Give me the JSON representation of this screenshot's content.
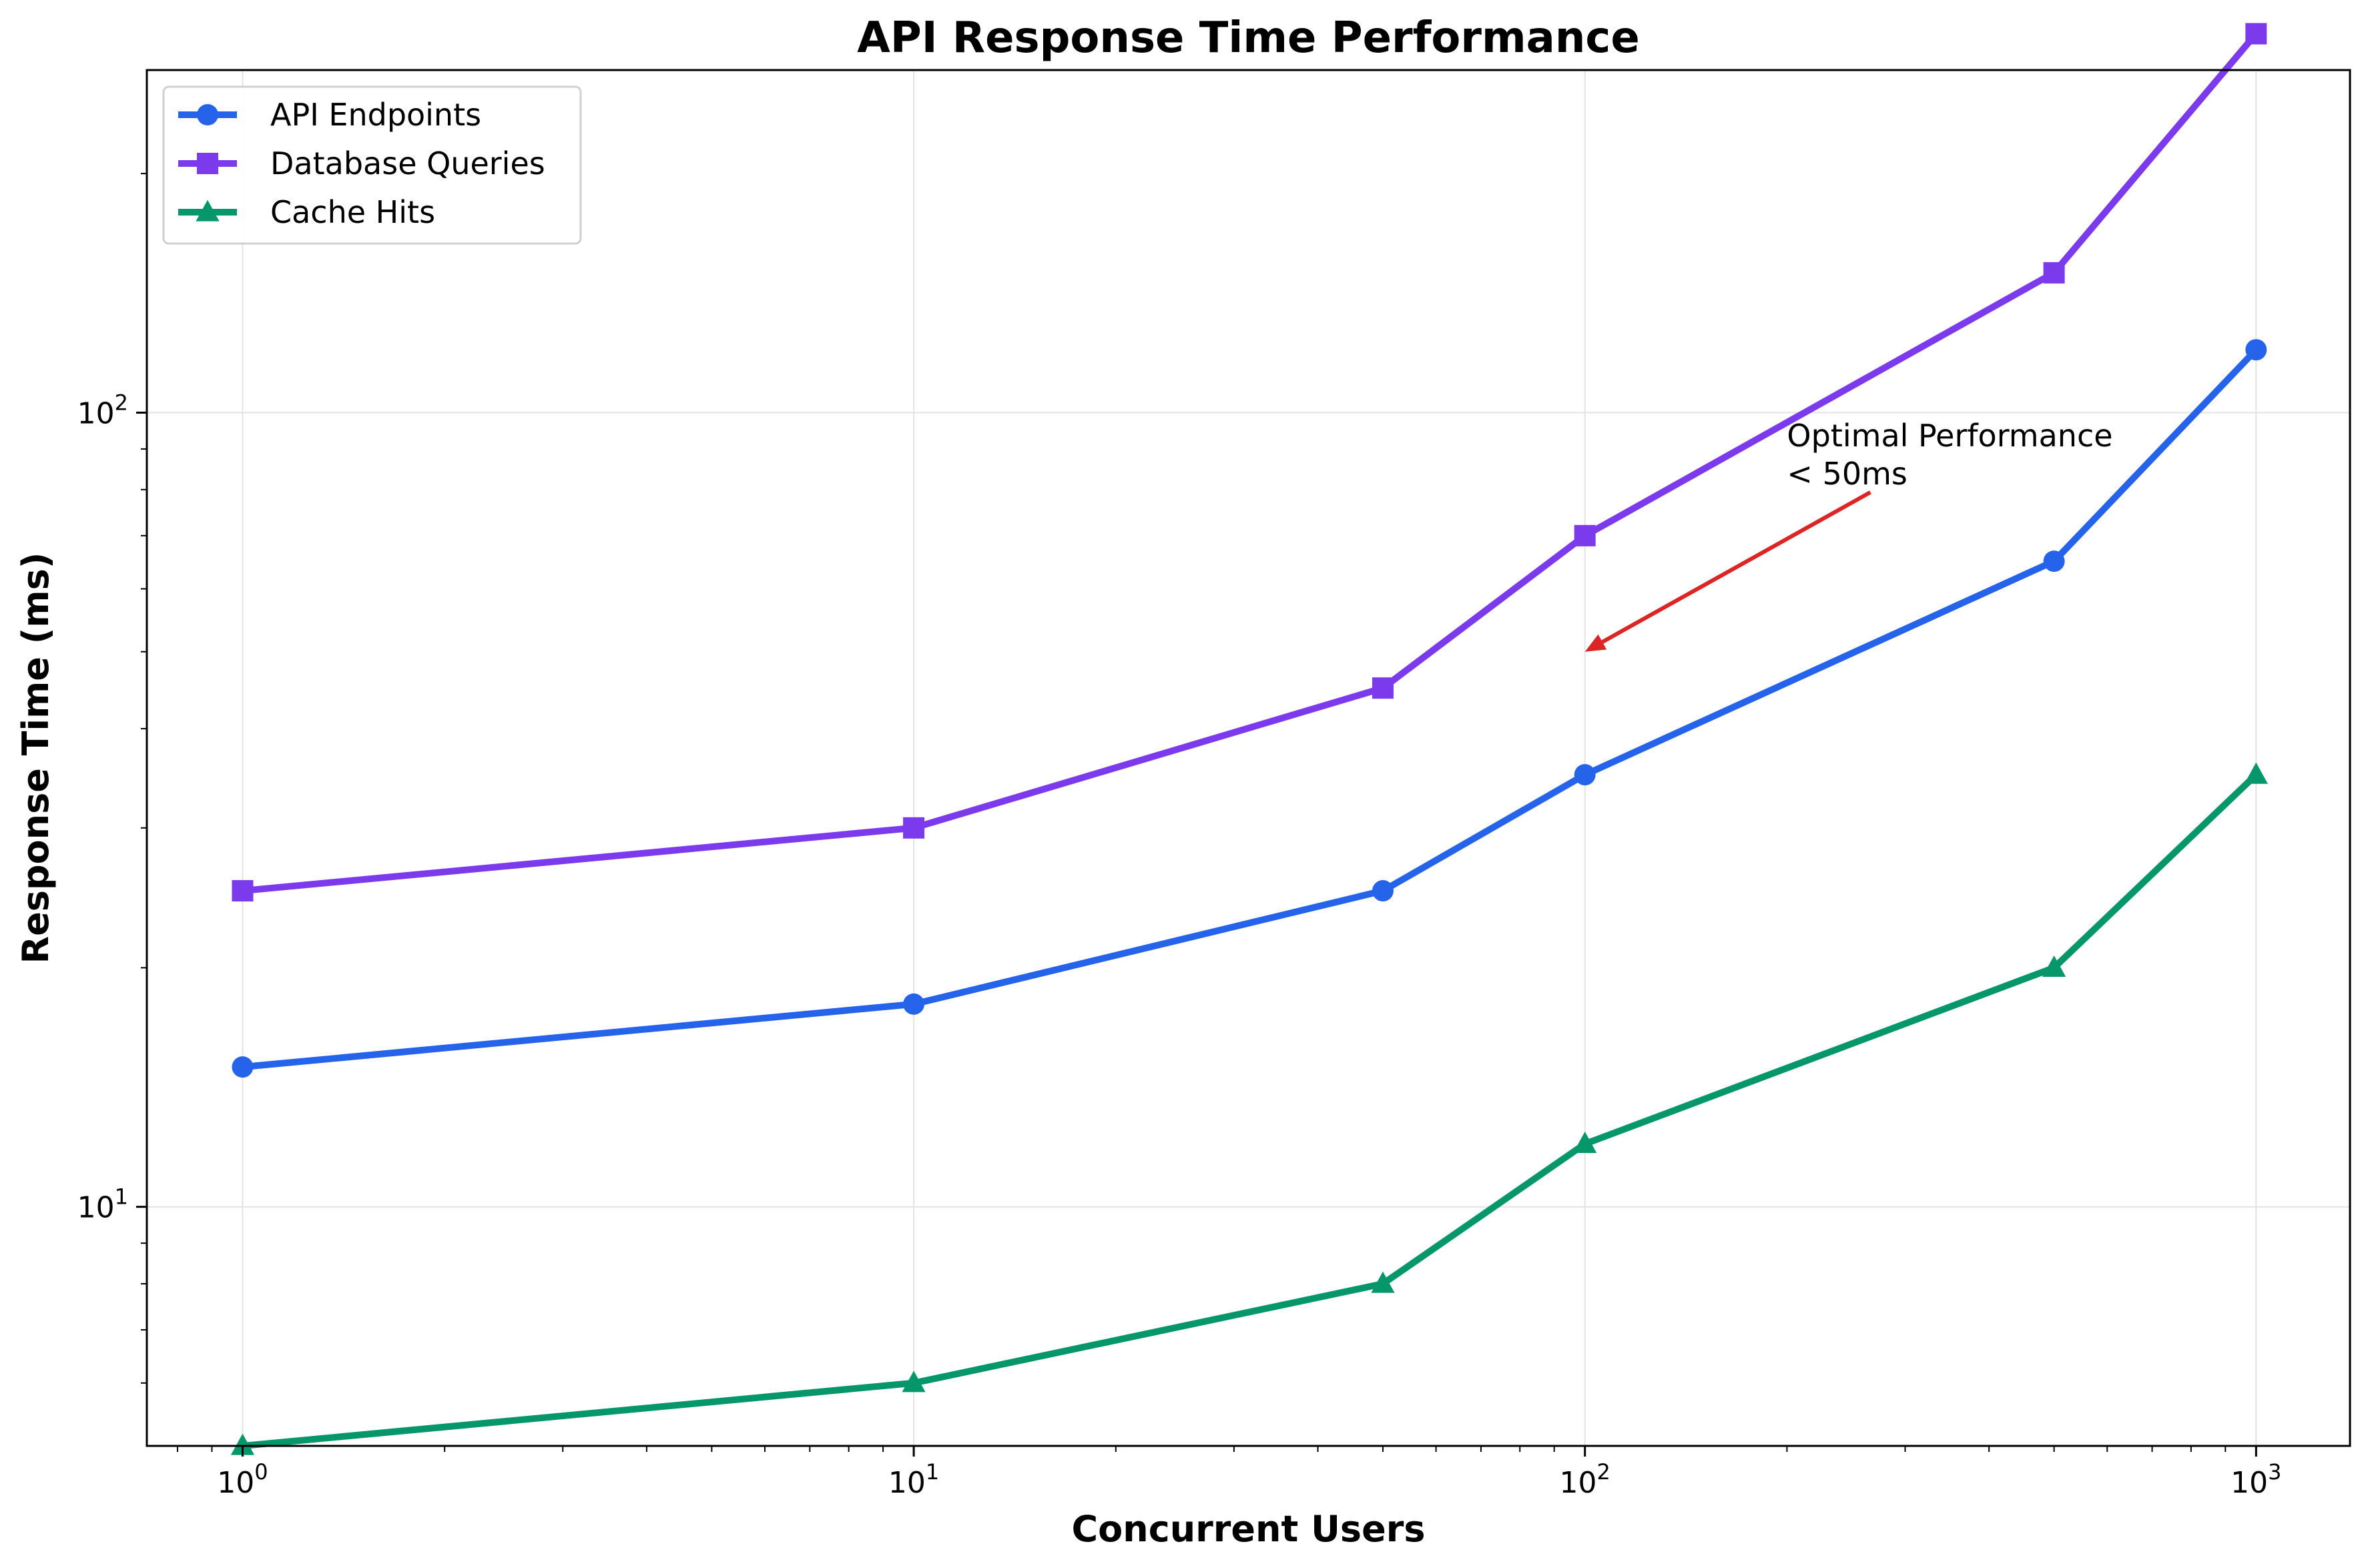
{
  "chart_data": {
    "type": "line",
    "title": "API Response Time Performance",
    "xlabel": "Concurrent Users",
    "ylabel": "Response Time (ms)",
    "xscale": "log",
    "yscale": "log",
    "xlim": [
      0.72,
      1380
    ],
    "ylim": [
      5.0,
      270
    ],
    "grid": true,
    "legend_position": "top-left",
    "x": [
      1,
      10,
      50,
      100,
      500,
      1000
    ],
    "series": [
      {
        "name": "API Endpoints",
        "color": "#2563eb",
        "marker": "circle",
        "values": [
          15,
          18,
          25,
          35,
          65,
          120
        ]
      },
      {
        "name": "Database Queries",
        "color": "#7c3aed",
        "marker": "square",
        "values": [
          25,
          30,
          45,
          70,
          150,
          300
        ]
      },
      {
        "name": "Cache Hits",
        "color": "#059669",
        "marker": "triangle",
        "values": [
          5,
          6,
          8,
          12,
          20,
          35
        ]
      }
    ],
    "x_ticks": [
      {
        "base": "10",
        "exp": "0",
        "value": 1
      },
      {
        "base": "10",
        "exp": "1",
        "value": 10
      },
      {
        "base": "10",
        "exp": "2",
        "value": 100
      },
      {
        "base": "10",
        "exp": "3",
        "value": 1000
      }
    ],
    "y_ticks": [
      {
        "base": "10",
        "exp": "1",
        "value": 10
      },
      {
        "base": "10",
        "exp": "2",
        "value": 100
      }
    ],
    "annotation": {
      "lines": [
        "Optimal Performance",
        "< 50ms"
      ],
      "arrow_color": "#dc2626",
      "point": [
        100,
        50
      ],
      "text_at": [
        200,
        80
      ]
    }
  }
}
